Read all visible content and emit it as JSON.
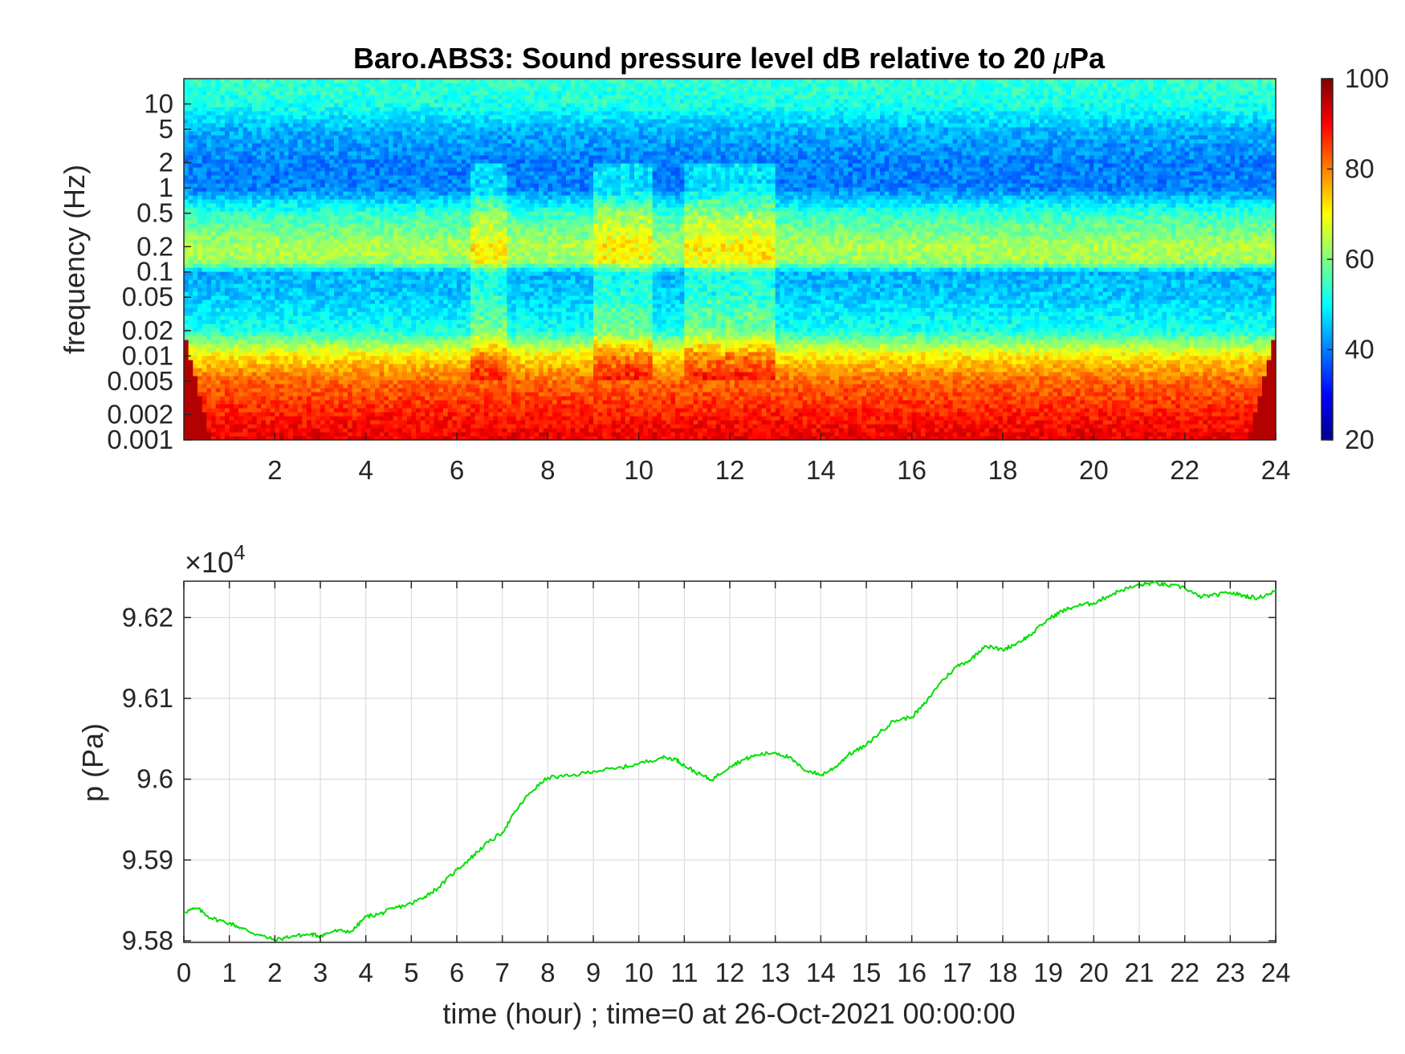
{
  "chart_data": [
    {
      "type": "heatmap",
      "title_prefix": "Baro.ABS3: Sound pressure level dB relative to 20 ",
      "title_mu": "μ",
      "title_suffix": "Pa",
      "ylabel": "frequency (Hz)",
      "xlabel": "",
      "y_scale": "log",
      "x_range": [
        0,
        24
      ],
      "y_range": [
        0.001,
        20
      ],
      "x_ticks": [
        "2",
        "4",
        "6",
        "8",
        "10",
        "12",
        "14",
        "16",
        "18",
        "20",
        "22",
        "24"
      ],
      "x_tick_values": [
        2,
        4,
        6,
        8,
        10,
        12,
        14,
        16,
        18,
        20,
        22,
        24
      ],
      "y_ticks": [
        "0.001",
        "0.002",
        "0.005",
        "0.01",
        "0.02",
        "0.05",
        "0.1",
        "0.2",
        "0.5",
        "1",
        "2",
        "5",
        "10"
      ],
      "y_tick_values": [
        0.001,
        0.002,
        0.005,
        0.01,
        0.02,
        0.05,
        0.1,
        0.2,
        0.5,
        1,
        2,
        5,
        10
      ],
      "colormap": "jet",
      "colorbar": {
        "range": [
          20,
          100
        ],
        "ticks": [
          "20",
          "40",
          "60",
          "80",
          "100"
        ],
        "tick_values": [
          20,
          40,
          60,
          80,
          100
        ]
      },
      "level_profile_db": {
        "frequency_hz": [
          0.001,
          0.002,
          0.005,
          0.01,
          0.02,
          0.05,
          0.1,
          0.13,
          0.2,
          0.5,
          1,
          2,
          5,
          10,
          20
        ],
        "level_db": [
          92,
          88,
          82,
          72,
          52,
          46,
          44,
          62,
          64,
          54,
          40,
          40,
          44,
          52,
          54
        ]
      },
      "active_periods_hours": [
        [
          6.3,
          7.1
        ],
        [
          9.0,
          10.3
        ],
        [
          11.0,
          13.0
        ]
      ]
    },
    {
      "type": "line",
      "xlabel": "time (hour) ; time=0 at 26-Oct-2021 00:00:00",
      "ylabel": "p (Pa)",
      "exponent_label_prefix": "×10",
      "exponent_label_power": "4",
      "x_range": [
        0,
        24
      ],
      "y_range": [
        95798,
        96245
      ],
      "grid": true,
      "x_ticks": [
        "0",
        "1",
        "2",
        "3",
        "4",
        "5",
        "6",
        "7",
        "8",
        "9",
        "10",
        "11",
        "12",
        "13",
        "14",
        "15",
        "16",
        "17",
        "18",
        "19",
        "20",
        "21",
        "22",
        "23",
        "24"
      ],
      "x_tick_values": [
        0,
        1,
        2,
        3,
        4,
        5,
        6,
        7,
        8,
        9,
        10,
        11,
        12,
        13,
        14,
        15,
        16,
        17,
        18,
        19,
        20,
        21,
        22,
        23,
        24
      ],
      "y_ticks": [
        "9.58",
        "9.59",
        "9.6",
        "9.61",
        "9.62"
      ],
      "y_tick_values": [
        95800,
        95900,
        96000,
        96100,
        96200
      ],
      "series": [
        {
          "color": "#00e000",
          "x": [
            0,
            0.3,
            0.6,
            1,
            1.3,
            1.6,
            2,
            2.4,
            2.8,
            3,
            3.3,
            3.7,
            4,
            4.3,
            4.6,
            5,
            5.3,
            5.6,
            6,
            6.3,
            6.6,
            7,
            7.3,
            7.6,
            8,
            8.5,
            9,
            9.5,
            10,
            10.5,
            10.8,
            11,
            11.3,
            11.6,
            12,
            12.3,
            12.6,
            13,
            13.3,
            13.6,
            14,
            14.3,
            14.6,
            15,
            15.3,
            15.6,
            16,
            16.3,
            16.6,
            17,
            17.3,
            17.6,
            18,
            18.3,
            18.6,
            19,
            19.3,
            19.6,
            20,
            20.3,
            20.6,
            21,
            21.3,
            21.6,
            22,
            22.3,
            22.6,
            23,
            23.3,
            23.6,
            24
          ],
          "y": [
            95836,
            95840,
            95828,
            95822,
            95815,
            95808,
            95801,
            95806,
            95808,
            95806,
            95812,
            95812,
            95830,
            95833,
            95840,
            95846,
            95855,
            95866,
            95888,
            95902,
            95918,
            95934,
            95961,
            95983,
            96002,
            96004,
            96010,
            96013,
            96019,
            96027,
            96025,
            96017,
            96007,
            95999,
            96016,
            96024,
            96030,
            96033,
            96027,
            96013,
            96005,
            96014,
            96030,
            96042,
            96058,
            96072,
            96077,
            96094,
            96118,
            96140,
            96148,
            96165,
            96160,
            96168,
            96178,
            96198,
            96208,
            96214,
            96218,
            96226,
            96234,
            96240,
            96243,
            96240,
            96237,
            96226,
            96227,
            96231,
            96227,
            96224,
            96233
          ]
        }
      ]
    }
  ]
}
